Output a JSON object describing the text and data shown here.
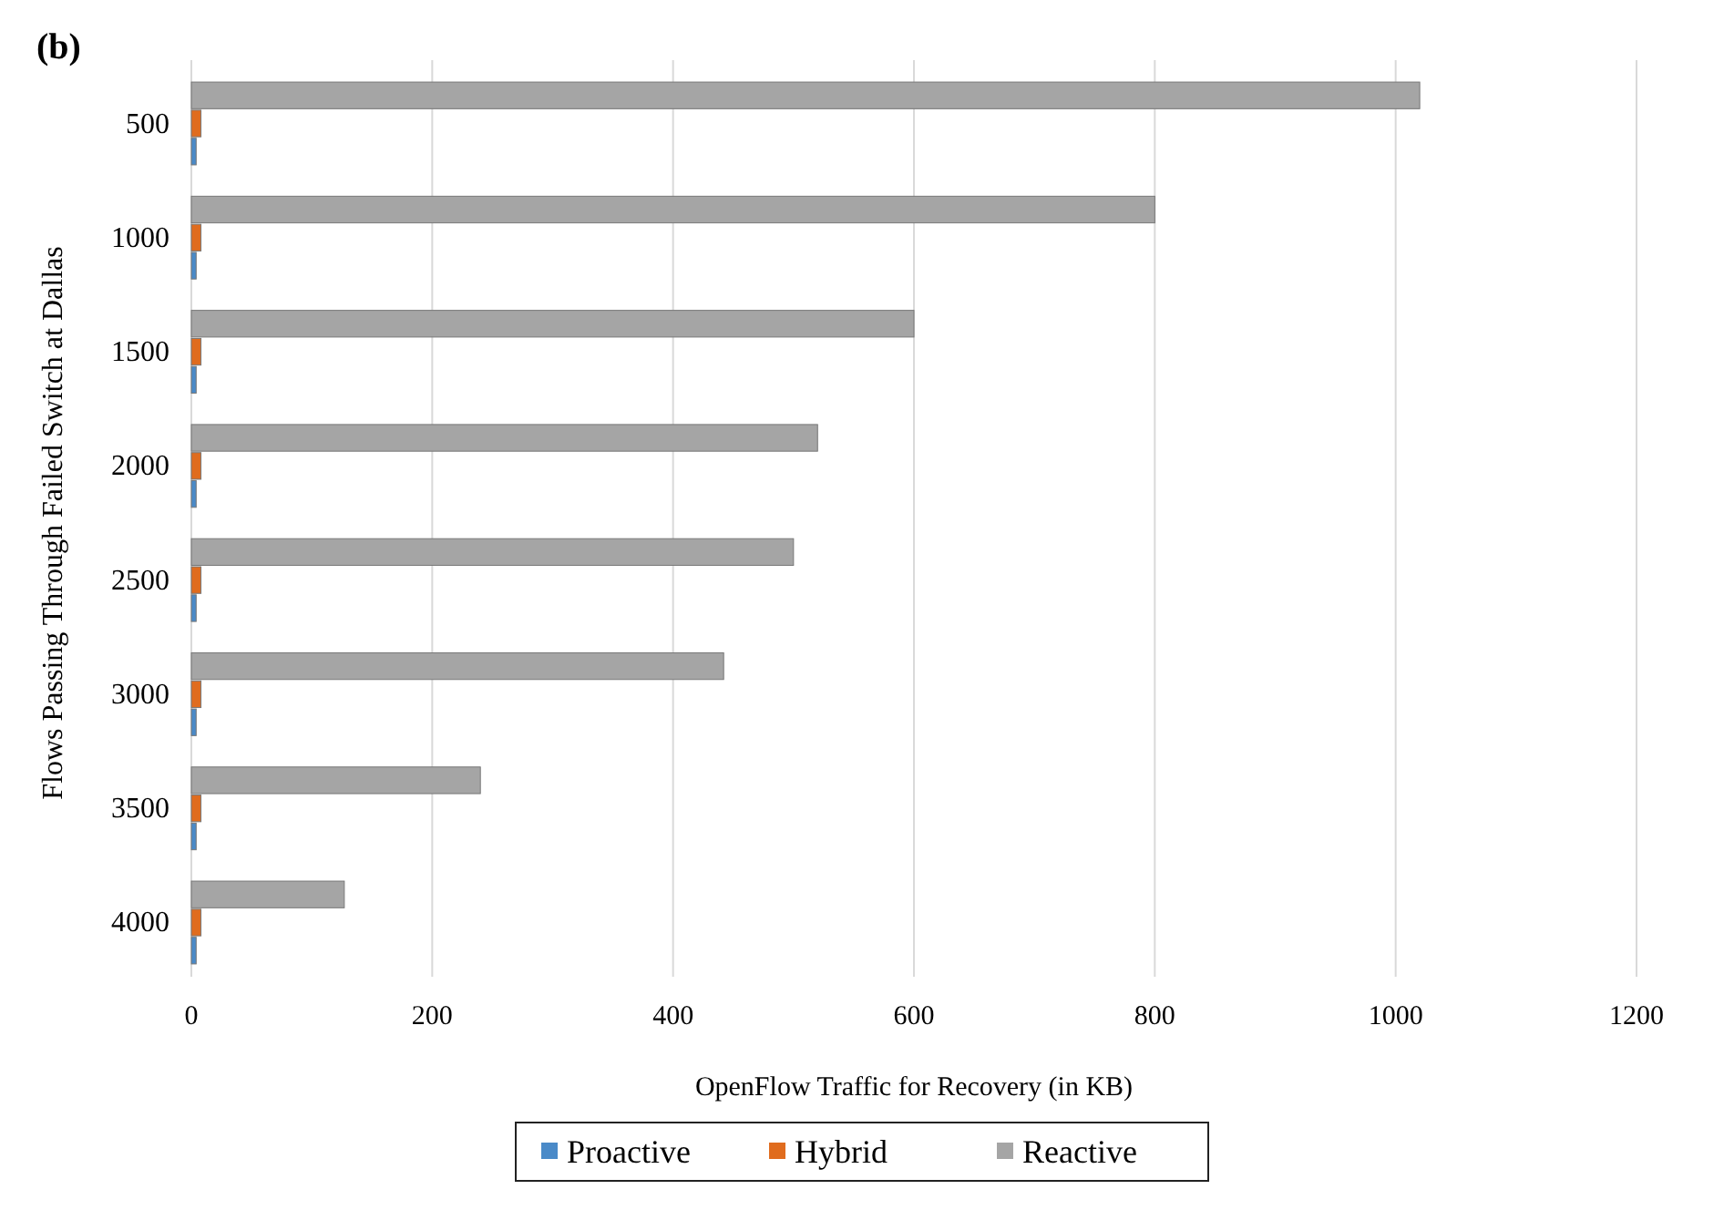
{
  "chart_data": {
    "type": "bar",
    "orientation": "horizontal",
    "title": "(b)",
    "xlabel": "OpenFlow Traffic for Recovery (in KB)",
    "ylabel": "Flows Passing Through Failed Switch at Dallas",
    "categories": [
      "500",
      "1000",
      "1500",
      "2000",
      "2500",
      "3000",
      "3500",
      "4000"
    ],
    "series": [
      {
        "name": "Proactive",
        "color": "#4a8ac8",
        "values": [
          4,
          4,
          4,
          4,
          4,
          4,
          4,
          4
        ]
      },
      {
        "name": "Hybrid",
        "color": "#e06c1e",
        "values": [
          8,
          8,
          8,
          8,
          8,
          8,
          8,
          8
        ]
      },
      {
        "name": "Reactive",
        "color": "#a5a5a5",
        "values": [
          1020,
          800,
          600,
          520,
          500,
          442,
          240,
          127
        ]
      }
    ],
    "xlim": [
      0,
      1200
    ],
    "xticks": [
      0,
      200,
      400,
      600,
      800,
      1000,
      1200
    ],
    "grid": "x",
    "legend": "bottom"
  }
}
